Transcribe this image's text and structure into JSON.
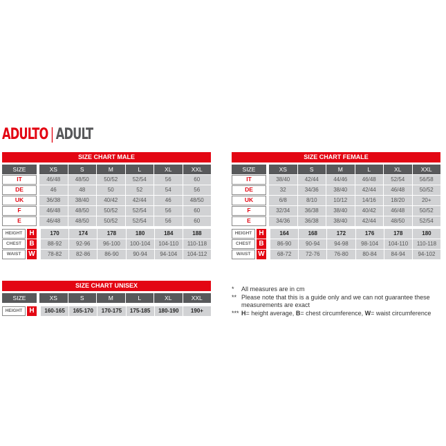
{
  "heading": {
    "it": "ADULTO",
    "sep": "|",
    "en": "ADULT"
  },
  "sizes": [
    "XS",
    "S",
    "M",
    "L",
    "XL",
    "XXL"
  ],
  "size_label": "SIZE",
  "male": {
    "title": "SIZE CHART MALE",
    "rows": [
      {
        "label": "IT",
        "values": [
          "46/48",
          "48/50",
          "50/52",
          "52/54",
          "56",
          "60"
        ]
      },
      {
        "label": "DE",
        "values": [
          "46",
          "48",
          "50",
          "52",
          "54",
          "56"
        ]
      },
      {
        "label": "UK",
        "values": [
          "36/38",
          "38/40",
          "40/42",
          "42/44",
          "46",
          "48/50"
        ]
      },
      {
        "label": "F",
        "values": [
          "46/48",
          "48/50",
          "50/52",
          "52/54",
          "56",
          "60"
        ]
      },
      {
        "label": "E",
        "values": [
          "46/48",
          "48/50",
          "50/52",
          "52/54",
          "56",
          "60"
        ]
      }
    ],
    "measures": [
      {
        "label": "HEIGHT",
        "letter": "H",
        "values": [
          "170",
          "174",
          "178",
          "180",
          "184",
          "188"
        ]
      },
      {
        "label": "CHEST",
        "letter": "B",
        "values": [
          "88-92",
          "92-96",
          "96-100",
          "100-104",
          "104-110",
          "110-118"
        ]
      },
      {
        "label": "WAIST",
        "letter": "W",
        "values": [
          "78-82",
          "82-86",
          "86-90",
          "90-94",
          "94-104",
          "104-112"
        ]
      }
    ]
  },
  "female": {
    "title": "SIZE CHART FEMALE",
    "rows": [
      {
        "label": "IT",
        "values": [
          "38/40",
          "42/44",
          "44/46",
          "46/48",
          "52/54",
          "56/58"
        ]
      },
      {
        "label": "DE",
        "values": [
          "32",
          "34/36",
          "38/40",
          "42/44",
          "46/48",
          "50/52"
        ]
      },
      {
        "label": "UK",
        "values": [
          "6/8",
          "8/10",
          "10/12",
          "14/16",
          "18/20",
          "20+"
        ]
      },
      {
        "label": "F",
        "values": [
          "32/34",
          "36/38",
          "38/40",
          "40/42",
          "46/48",
          "50/52"
        ]
      },
      {
        "label": "E",
        "values": [
          "34/36",
          "36/38",
          "38/40",
          "42/44",
          "48/50",
          "52/54"
        ]
      }
    ],
    "measures": [
      {
        "label": "HEIGHT",
        "letter": "H",
        "values": [
          "164",
          "168",
          "172",
          "176",
          "178",
          "180"
        ]
      },
      {
        "label": "CHEST",
        "letter": "B",
        "values": [
          "86-90",
          "90-94",
          "94-98",
          "98-104",
          "104-110",
          "110-118"
        ]
      },
      {
        "label": "WAIST",
        "letter": "W",
        "values": [
          "68-72",
          "72-76",
          "76-80",
          "80-84",
          "84-94",
          "94-102"
        ]
      }
    ]
  },
  "unisex": {
    "title": "SIZE CHART UNISEX",
    "rows": [],
    "measures": [
      {
        "label": "HEIGHT",
        "letter": "H",
        "values": [
          "160-165",
          "165-170",
          "170-175",
          "175-185",
          "180-190",
          "190+"
        ]
      }
    ]
  },
  "notes": [
    {
      "mark": "*",
      "text": "All measures are in cm"
    },
    {
      "mark": "**",
      "text": "Please note that this is a guide only and we can not guarantee these measurements are exact"
    },
    {
      "mark": "***",
      "parts": [
        {
          "b": "H"
        },
        {
          "t": "= height average, "
        },
        {
          "b": "B"
        },
        {
          "t": "= chest circumference, "
        },
        {
          "b": "W"
        },
        {
          "t": "= waist circumference"
        }
      ]
    }
  ]
}
